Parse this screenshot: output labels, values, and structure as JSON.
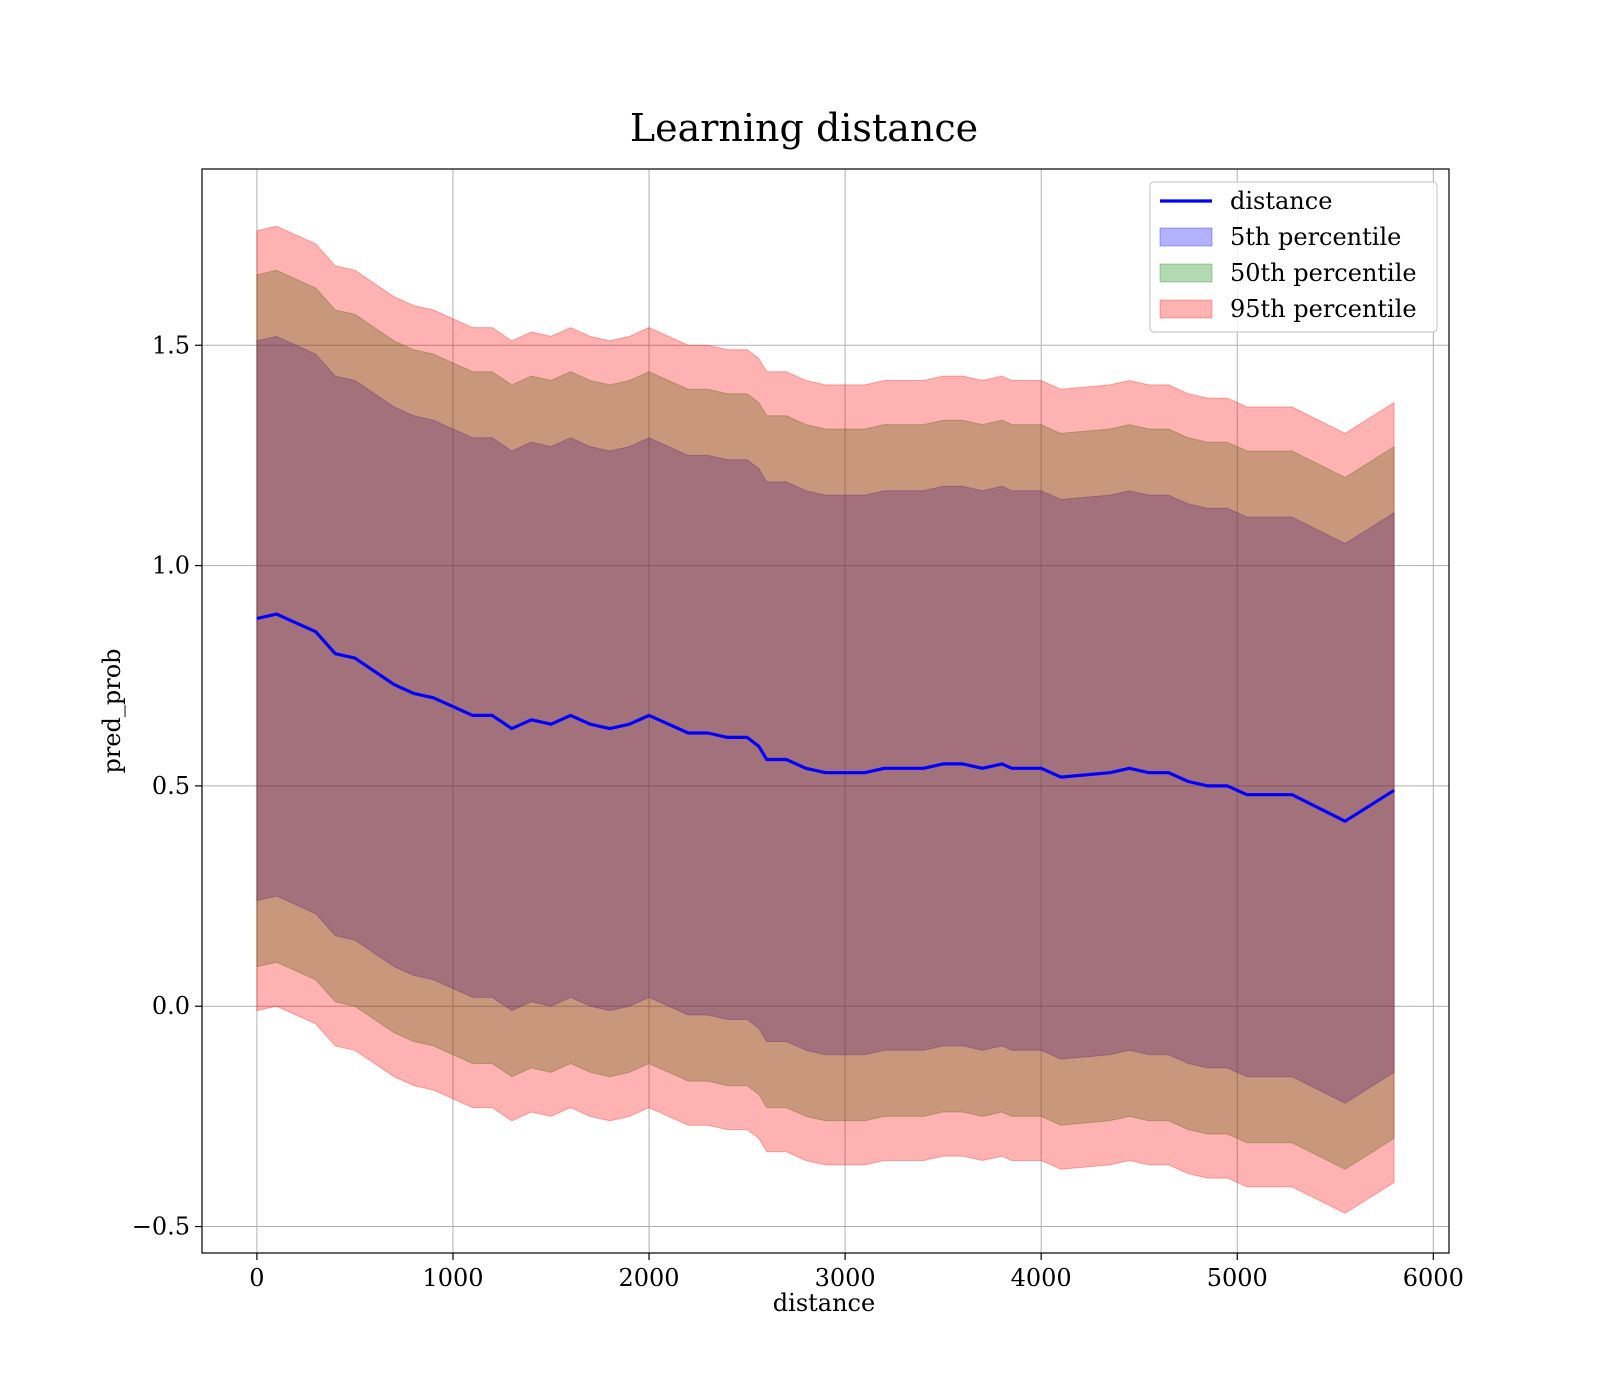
{
  "chart_data": {
    "type": "area",
    "title": "Learning distance",
    "xlabel": "distance",
    "ylabel": "pred_prob",
    "xlim": [
      -280,
      6080
    ],
    "ylim": [
      -0.56,
      1.9
    ],
    "xticks": [
      0,
      1000,
      2000,
      3000,
      4000,
      5000,
      6000
    ],
    "xtick_labels": [
      "0",
      "1000",
      "2000",
      "3000",
      "4000",
      "5000",
      "6000"
    ],
    "yticks": [
      -0.5,
      0.0,
      0.5,
      1.0,
      1.5
    ],
    "ytick_labels": [
      "−0.5",
      "0.0",
      "0.5",
      "1.0",
      "1.5"
    ],
    "grid": true,
    "legend_position": "top-right",
    "x": [
      0,
      100,
      200,
      300,
      400,
      500,
      600,
      700,
      800,
      900,
      1000,
      1100,
      1200,
      1300,
      1400,
      1500,
      1600,
      1700,
      1800,
      1900,
      2000,
      2100,
      2200,
      2300,
      2400,
      2500,
      2560,
      2600,
      2700,
      2800,
      2900,
      3000,
      3100,
      3200,
      3300,
      3400,
      3500,
      3600,
      3700,
      3800,
      3850,
      4000,
      4100,
      4350,
      4450,
      4550,
      4650,
      4750,
      4850,
      4950,
      5050,
      5280,
      5550,
      5800
    ],
    "series": [
      {
        "name": "distance",
        "kind": "line",
        "color": "#0000ff",
        "values": [
          0.88,
          0.89,
          0.87,
          0.85,
          0.8,
          0.79,
          0.76,
          0.73,
          0.71,
          0.7,
          0.68,
          0.66,
          0.66,
          0.63,
          0.65,
          0.64,
          0.66,
          0.64,
          0.63,
          0.64,
          0.66,
          0.64,
          0.62,
          0.62,
          0.61,
          0.61,
          0.59,
          0.56,
          0.56,
          0.54,
          0.53,
          0.53,
          0.53,
          0.54,
          0.54,
          0.54,
          0.55,
          0.55,
          0.54,
          0.55,
          0.54,
          0.54,
          0.52,
          0.53,
          0.54,
          0.53,
          0.53,
          0.51,
          0.5,
          0.5,
          0.48,
          0.48,
          0.42,
          0.49
        ]
      },
      {
        "name": "5th percentile",
        "kind": "band",
        "color": "#0000ff",
        "lower": [
          0.24,
          0.25,
          0.23,
          0.21,
          0.16,
          0.15,
          0.12,
          0.09,
          0.07,
          0.06,
          0.04,
          0.02,
          0.02,
          -0.01,
          0.01,
          0.0,
          0.02,
          0.0,
          -0.01,
          0.0,
          0.02,
          0.0,
          -0.02,
          -0.02,
          -0.03,
          -0.03,
          -0.05,
          -0.08,
          -0.08,
          -0.1,
          -0.11,
          -0.11,
          -0.11,
          -0.1,
          -0.1,
          -0.1,
          -0.09,
          -0.09,
          -0.1,
          -0.09,
          -0.1,
          -0.1,
          -0.12,
          -0.11,
          -0.1,
          -0.11,
          -0.11,
          -0.13,
          -0.14,
          -0.14,
          -0.16,
          -0.16,
          -0.22,
          -0.15
        ],
        "upper": [
          1.51,
          1.52,
          1.5,
          1.48,
          1.43,
          1.42,
          1.39,
          1.36,
          1.34,
          1.33,
          1.31,
          1.29,
          1.29,
          1.26,
          1.28,
          1.27,
          1.29,
          1.27,
          1.26,
          1.27,
          1.29,
          1.27,
          1.25,
          1.25,
          1.24,
          1.24,
          1.22,
          1.19,
          1.19,
          1.17,
          1.16,
          1.16,
          1.16,
          1.17,
          1.17,
          1.17,
          1.18,
          1.18,
          1.17,
          1.18,
          1.17,
          1.17,
          1.15,
          1.16,
          1.17,
          1.16,
          1.16,
          1.14,
          1.13,
          1.13,
          1.11,
          1.11,
          1.05,
          1.12
        ]
      },
      {
        "name": "50th percentile",
        "kind": "band",
        "color": "#008000",
        "lower": [
          0.09,
          0.1,
          0.08,
          0.06,
          0.01,
          0.0,
          -0.03,
          -0.06,
          -0.08,
          -0.09,
          -0.11,
          -0.13,
          -0.13,
          -0.16,
          -0.14,
          -0.15,
          -0.13,
          -0.15,
          -0.16,
          -0.15,
          -0.13,
          -0.15,
          -0.17,
          -0.17,
          -0.18,
          -0.18,
          -0.2,
          -0.23,
          -0.23,
          -0.25,
          -0.26,
          -0.26,
          -0.26,
          -0.25,
          -0.25,
          -0.25,
          -0.24,
          -0.24,
          -0.25,
          -0.24,
          -0.25,
          -0.25,
          -0.27,
          -0.26,
          -0.25,
          -0.26,
          -0.26,
          -0.28,
          -0.29,
          -0.29,
          -0.31,
          -0.31,
          -0.37,
          -0.3
        ],
        "upper": [
          1.66,
          1.67,
          1.65,
          1.63,
          1.58,
          1.57,
          1.54,
          1.51,
          1.49,
          1.48,
          1.46,
          1.44,
          1.44,
          1.41,
          1.43,
          1.42,
          1.44,
          1.42,
          1.41,
          1.42,
          1.44,
          1.42,
          1.4,
          1.4,
          1.39,
          1.39,
          1.37,
          1.34,
          1.34,
          1.32,
          1.31,
          1.31,
          1.31,
          1.32,
          1.32,
          1.32,
          1.33,
          1.33,
          1.32,
          1.33,
          1.32,
          1.32,
          1.3,
          1.31,
          1.32,
          1.31,
          1.31,
          1.29,
          1.28,
          1.28,
          1.26,
          1.26,
          1.2,
          1.27
        ]
      },
      {
        "name": "95th percentile",
        "kind": "band",
        "color": "#ff0000",
        "lower": [
          -0.01,
          0.0,
          -0.02,
          -0.04,
          -0.09,
          -0.1,
          -0.13,
          -0.16,
          -0.18,
          -0.19,
          -0.21,
          -0.23,
          -0.23,
          -0.26,
          -0.24,
          -0.25,
          -0.23,
          -0.25,
          -0.26,
          -0.25,
          -0.23,
          -0.25,
          -0.27,
          -0.27,
          -0.28,
          -0.28,
          -0.3,
          -0.33,
          -0.33,
          -0.35,
          -0.36,
          -0.36,
          -0.36,
          -0.35,
          -0.35,
          -0.35,
          -0.34,
          -0.34,
          -0.35,
          -0.34,
          -0.35,
          -0.35,
          -0.37,
          -0.36,
          -0.35,
          -0.36,
          -0.36,
          -0.38,
          -0.39,
          -0.39,
          -0.41,
          -0.41,
          -0.47,
          -0.4
        ],
        "upper": [
          1.76,
          1.77,
          1.75,
          1.73,
          1.68,
          1.67,
          1.64,
          1.61,
          1.59,
          1.58,
          1.56,
          1.54,
          1.54,
          1.51,
          1.53,
          1.52,
          1.54,
          1.52,
          1.51,
          1.52,
          1.54,
          1.52,
          1.5,
          1.5,
          1.49,
          1.49,
          1.47,
          1.44,
          1.44,
          1.42,
          1.41,
          1.41,
          1.41,
          1.42,
          1.42,
          1.42,
          1.43,
          1.43,
          1.42,
          1.43,
          1.42,
          1.42,
          1.4,
          1.41,
          1.42,
          1.41,
          1.41,
          1.39,
          1.38,
          1.38,
          1.36,
          1.36,
          1.3,
          1.37
        ]
      }
    ]
  }
}
